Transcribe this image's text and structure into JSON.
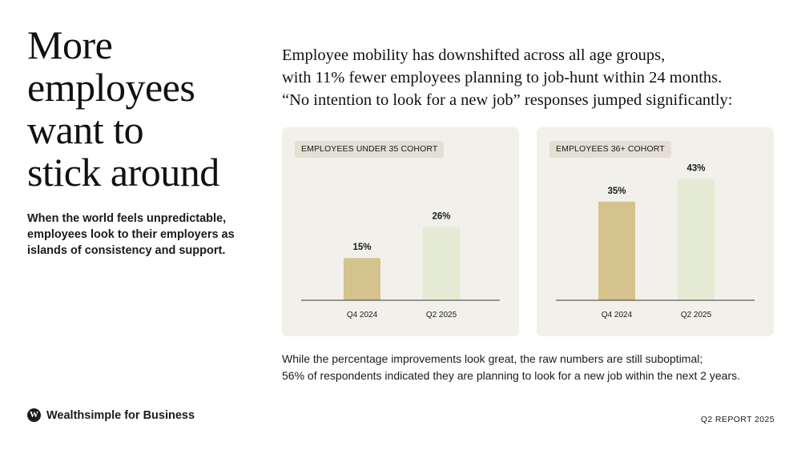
{
  "headline": {
    "lines": [
      "More",
      "employees",
      "want to",
      "stick around"
    ]
  },
  "subtext": {
    "lines": [
      "When the world feels unpredictable,",
      "employees look to their employers as",
      "islands of consistency and support."
    ]
  },
  "intro": {
    "lines": [
      "Employee mobility has downshifted across all age groups,",
      "with 11% fewer employees planning to job-hunt within 24 months.",
      "“No intention to look for a new job” responses jumped significantly:"
    ]
  },
  "colors": {
    "panel_bg": "#f1f0ea",
    "badge_bg": "#e3dfd2",
    "bar_q4_2024": "#d5c38d",
    "bar_q2_2025": "#e5ead4",
    "axis": "#3a3a3a"
  },
  "chart_data": [
    {
      "type": "bar",
      "title": "EMPLOYEES UNDER 35 COHORT",
      "categories": [
        "Q4 2024",
        "Q2 2025"
      ],
      "values": [
        15,
        26
      ],
      "data_labels": [
        "15%",
        "26%"
      ],
      "ylim": [
        0,
        50
      ],
      "grid": false,
      "legend": "none"
    },
    {
      "type": "bar",
      "title": "EMPLOYEES 36+ COHORT",
      "categories": [
        "Q4 2024",
        "Q2 2025"
      ],
      "values": [
        35,
        43
      ],
      "data_labels": [
        "35%",
        "43%"
      ],
      "ylim": [
        0,
        50
      ],
      "grid": false,
      "legend": "none"
    }
  ],
  "footnote": {
    "line1": "While the percentage improvements look great, the raw numbers are still suboptimal;",
    "line2": "56% of respondents indicated they are planning to look for a new job within the next 2 years."
  },
  "brand": {
    "mark": "W",
    "icon": "wealthsimple-logo-icon",
    "name": "Wealthsimple for Business"
  },
  "report_label": "Q2 REPORT 2025"
}
